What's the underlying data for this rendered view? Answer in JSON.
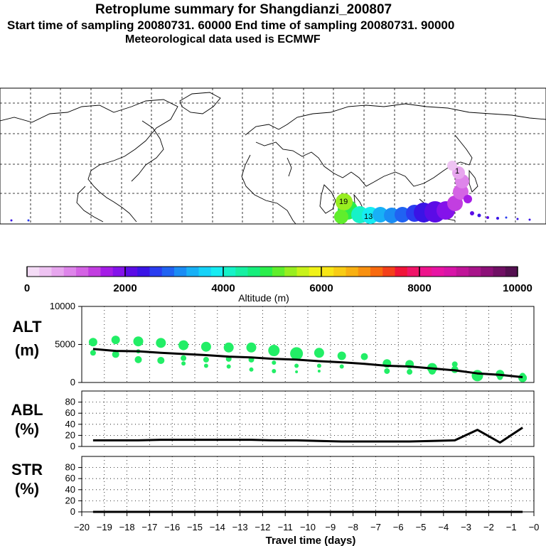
{
  "header": {
    "title": "Retroplume summary for Shangdianzi_200807",
    "sampling_line": "Start time of sampling 20080731. 60000     End time of sampling 20080731. 90000",
    "met_line": "Meteorological data used is ECMWF"
  },
  "colorbar": {
    "ticks": [
      "0",
      "2000",
      "4000",
      "6000",
      "8000",
      "10000"
    ],
    "label": "Altitude (m)",
    "colors": [
      "#f4dcf6",
      "#eec3f2",
      "#e7a6ee",
      "#de85ea",
      "#d463e4",
      "#c23ee0",
      "#a51ce6",
      "#8412ea",
      "#5b0ce6",
      "#3a14e6",
      "#2a3df0",
      "#2063f2",
      "#1a8cf4",
      "#18b0f6",
      "#16d2f8",
      "#16ecf2",
      "#16f2c8",
      "#16f0a2",
      "#16ee7c",
      "#2aee4c",
      "#60ee2c",
      "#98ee20",
      "#c8f21a",
      "#f0f218",
      "#f8e616",
      "#f8cc14",
      "#f8b012",
      "#f89010",
      "#f86a0e",
      "#f4401a",
      "#f01438",
      "#f01468",
      "#ee148c",
      "#e814a4",
      "#d814a8",
      "#c01498",
      "#a8148a",
      "#8c1078",
      "#701064",
      "#541050"
    ]
  },
  "map": {
    "labels": [
      {
        "text": "19"
      },
      {
        "text": "13"
      },
      {
        "text": "1"
      }
    ]
  },
  "chart_data": [
    {
      "type": "line",
      "name": "ALT",
      "ylabel": "ALT\n(m)",
      "ylabel_lines": [
        "ALT",
        "(m)"
      ],
      "yticks": [
        "10000",
        "5000",
        "0"
      ],
      "ylim": [
        0,
        10000
      ],
      "xlim": [
        -20,
        0
      ],
      "x": [
        -19.5,
        -18.5,
        -17.5,
        -16.5,
        -15.5,
        -14.5,
        -13.5,
        -12.5,
        -11.5,
        -10.5,
        -9.5,
        -8.5,
        -7.5,
        -6.5,
        -5.5,
        -4.5,
        -3.5,
        -2.5,
        -1.5,
        -0.5
      ],
      "series": [
        {
          "name": "mean altitude",
          "values": [
            4400,
            4150,
            4100,
            3900,
            3750,
            3600,
            3400,
            3300,
            3100,
            3000,
            2800,
            2650,
            2450,
            2200,
            2100,
            1850,
            1600,
            1200,
            1000,
            700
          ]
        }
      ],
      "points": [
        {
          "x": -19.5,
          "y": 5300,
          "r": 6
        },
        {
          "x": -19.5,
          "y": 3900,
          "r": 4
        },
        {
          "x": -18.5,
          "y": 5600,
          "r": 6
        },
        {
          "x": -18.5,
          "y": 3700,
          "r": 5
        },
        {
          "x": -17.5,
          "y": 5400,
          "r": 7
        },
        {
          "x": -17.5,
          "y": 3000,
          "r": 5
        },
        {
          "x": -17.5,
          "y": 4100,
          "r": 3
        },
        {
          "x": -16.5,
          "y": 5200,
          "r": 7
        },
        {
          "x": -16.5,
          "y": 2900,
          "r": 5
        },
        {
          "x": -15.5,
          "y": 4900,
          "r": 7
        },
        {
          "x": -15.5,
          "y": 3200,
          "r": 4
        },
        {
          "x": -15.5,
          "y": 2500,
          "r": 3
        },
        {
          "x": -14.5,
          "y": 4700,
          "r": 7
        },
        {
          "x": -14.5,
          "y": 3000,
          "r": 4
        },
        {
          "x": -14.5,
          "y": 2200,
          "r": 3
        },
        {
          "x": -13.5,
          "y": 4600,
          "r": 7
        },
        {
          "x": -13.5,
          "y": 3100,
          "r": 4
        },
        {
          "x": -13.5,
          "y": 2100,
          "r": 3
        },
        {
          "x": -12.5,
          "y": 4600,
          "r": 7
        },
        {
          "x": -12.5,
          "y": 3000,
          "r": 4
        },
        {
          "x": -12.5,
          "y": 1700,
          "r": 3
        },
        {
          "x": -11.5,
          "y": 4200,
          "r": 8
        },
        {
          "x": -11.5,
          "y": 2600,
          "r": 3
        },
        {
          "x": -11.5,
          "y": 1500,
          "r": 3
        },
        {
          "x": -10.5,
          "y": 3800,
          "r": 9
        },
        {
          "x": -10.5,
          "y": 2200,
          "r": 3
        },
        {
          "x": -10.5,
          "y": 1400,
          "r": 2
        },
        {
          "x": -9.5,
          "y": 3900,
          "r": 7
        },
        {
          "x": -9.5,
          "y": 2200,
          "r": 3
        },
        {
          "x": -9.5,
          "y": 1500,
          "r": 2
        },
        {
          "x": -8.5,
          "y": 3500,
          "r": 6
        },
        {
          "x": -8.5,
          "y": 2100,
          "r": 3
        },
        {
          "x": -7.5,
          "y": 3400,
          "r": 5
        },
        {
          "x": -6.5,
          "y": 2500,
          "r": 6
        },
        {
          "x": -6.5,
          "y": 1500,
          "r": 4
        },
        {
          "x": -5.5,
          "y": 2400,
          "r": 6
        },
        {
          "x": -5.5,
          "y": 1400,
          "r": 4
        },
        {
          "x": -4.5,
          "y": 1900,
          "r": 7
        },
        {
          "x": -4.5,
          "y": 1500,
          "r": 5
        },
        {
          "x": -3.5,
          "y": 2400,
          "r": 4
        },
        {
          "x": -3.5,
          "y": 1700,
          "r": 5
        },
        {
          "x": -2.5,
          "y": 900,
          "r": 8
        },
        {
          "x": -2.5,
          "y": 1200,
          "r": 4
        },
        {
          "x": -1.5,
          "y": 1100,
          "r": 6
        },
        {
          "x": -1.5,
          "y": 700,
          "r": 4
        },
        {
          "x": -0.5,
          "y": 600,
          "r": 6
        },
        {
          "x": -0.5,
          "y": 900,
          "r": 4
        }
      ],
      "point_color": "#22ee66"
    },
    {
      "type": "line",
      "name": "ABL",
      "ylabel_lines": [
        "ABL",
        "(%)"
      ],
      "yticks": [
        "80",
        "60",
        "40",
        "20",
        "0"
      ],
      "ylim": [
        0,
        100
      ],
      "xlim": [
        -20,
        0
      ],
      "x": [
        -19.5,
        -18.5,
        -17.5,
        -16.5,
        -15.5,
        -14.5,
        -13.5,
        -12.5,
        -11.5,
        -10.5,
        -9.5,
        -8.5,
        -7.5,
        -6.5,
        -5.5,
        -4.5,
        -3.5,
        -2.5,
        -1.5,
        -0.5
      ],
      "series": [
        {
          "name": "ABL fraction",
          "values": [
            11,
            11,
            11,
            12,
            12,
            12,
            12,
            12,
            11,
            11,
            10,
            9,
            9,
            9,
            9,
            10,
            11,
            30,
            7,
            34
          ]
        }
      ]
    },
    {
      "type": "line",
      "name": "STR",
      "ylabel_lines": [
        "STR",
        "(%)"
      ],
      "yticks": [
        "80",
        "60",
        "40",
        "20",
        "0"
      ],
      "ylim": [
        0,
        100
      ],
      "xlim": [
        -20,
        0
      ],
      "x": [
        -19.5,
        -18.5,
        -17.5,
        -16.5,
        -15.5,
        -14.5,
        -13.5,
        -12.5,
        -11.5,
        -10.5,
        -9.5,
        -8.5,
        -7.5,
        -6.5,
        -5.5,
        -4.5,
        -3.5,
        -2.5,
        -1.5,
        -0.5
      ],
      "series": [
        {
          "name": "stratospheric fraction",
          "values": [
            0,
            0,
            0,
            0,
            0,
            0,
            0,
            0,
            0,
            0,
            0,
            0,
            0,
            0,
            0,
            0,
            0,
            0,
            0,
            0
          ]
        }
      ]
    }
  ],
  "xaxis": {
    "label": "Travel time (days)",
    "ticks": [
      "-20",
      "-19",
      "-18",
      "-17",
      "-16",
      "-15",
      "-14",
      "-13",
      "-12",
      "-11",
      "-10",
      "-9",
      "-8",
      "-7",
      "-6",
      "-5",
      "-4",
      "-3",
      "-2",
      "-1",
      "-0"
    ]
  }
}
